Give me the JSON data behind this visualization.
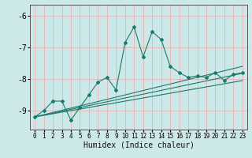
{
  "title": "",
  "xlabel": "Humidex (Indice chaleur)",
  "bg_color": "#cce8e8",
  "line_color": "#1a7a6e",
  "grid_color": "#aacece",
  "grid_color_red": "#e8b0b0",
  "xlim": [
    -0.5,
    23.5
  ],
  "ylim": [
    -9.6,
    -5.65
  ],
  "yticks": [
    -9,
    -8,
    -7,
    -6
  ],
  "xticks": [
    0,
    1,
    2,
    3,
    4,
    5,
    6,
    7,
    8,
    9,
    10,
    11,
    12,
    13,
    14,
    15,
    16,
    17,
    18,
    19,
    20,
    21,
    22,
    23
  ],
  "main_series": [
    [
      0,
      -9.2
    ],
    [
      1,
      -9.0
    ],
    [
      2,
      -8.7
    ],
    [
      3,
      -8.7
    ],
    [
      4,
      -9.3
    ],
    [
      5,
      -8.9
    ],
    [
      6,
      -8.5
    ],
    [
      7,
      -8.1
    ],
    [
      8,
      -7.95
    ],
    [
      9,
      -8.35
    ],
    [
      10,
      -6.85
    ],
    [
      11,
      -6.35
    ],
    [
      12,
      -7.3
    ],
    [
      13,
      -6.5
    ],
    [
      14,
      -6.75
    ],
    [
      15,
      -7.6
    ],
    [
      16,
      -7.8
    ],
    [
      17,
      -7.95
    ],
    [
      18,
      -7.9
    ],
    [
      19,
      -7.95
    ],
    [
      20,
      -7.8
    ],
    [
      21,
      -8.05
    ],
    [
      22,
      -7.85
    ],
    [
      23,
      -7.8
    ]
  ],
  "line1": [
    [
      0,
      -9.2
    ],
    [
      23,
      -7.6
    ]
  ],
  "line2": [
    [
      0,
      -9.2
    ],
    [
      23,
      -7.82
    ]
  ],
  "line3": [
    [
      0,
      -9.2
    ],
    [
      23,
      -8.05
    ]
  ],
  "xlabel_fontsize": 7,
  "ytick_fontsize": 7,
  "xtick_fontsize": 5.5
}
